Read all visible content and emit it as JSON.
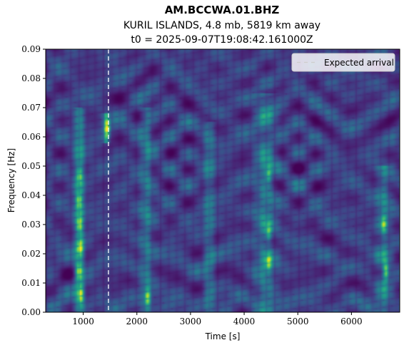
{
  "chart_data": {
    "type": "heatmap",
    "title": "AM.BCCWA.01.BHZ",
    "subtitle": "KURIL ISLANDS, 4.8 mb, 5819 km away",
    "subtitle2": "t0 = 2025-09-07T19:08:42.161000Z",
    "xlabel": "Time [s]",
    "ylabel": "Frequency [Hz]",
    "xlim": [
      300,
      6900
    ],
    "ylim": [
      0,
      0.09
    ],
    "xticks": [
      "1000",
      "2000",
      "3000",
      "4000",
      "5000",
      "6000"
    ],
    "yticks": [
      "0.00",
      "0.01",
      "0.02",
      "0.03",
      "0.04",
      "0.05",
      "0.06",
      "0.07",
      "0.08",
      "0.09"
    ],
    "colormap": "viridis",
    "expected_arrival": 1470,
    "legend": {
      "label": "Expected arrival",
      "position": "top-right"
    },
    "energy_bands": [
      {
        "t": 930,
        "w": 90,
        "f0": 0.0,
        "f1": 0.07,
        "amp": 0.75
      },
      {
        "t": 1420,
        "w": 60,
        "f0": 0.058,
        "f1": 0.068,
        "amp": 0.85
      },
      {
        "t": 2180,
        "w": 110,
        "f0": 0.0,
        "f1": 0.07,
        "amp": 0.5
      },
      {
        "t": 3350,
        "w": 90,
        "f0": 0.0,
        "f1": 0.065,
        "amp": 0.5
      },
      {
        "t": 4400,
        "w": 180,
        "f0": 0.0,
        "f1": 0.075,
        "amp": 0.55
      },
      {
        "t": 6600,
        "w": 120,
        "f0": 0.0,
        "f1": 0.05,
        "amp": 0.55
      }
    ],
    "hotspots": [
      {
        "t": 950,
        "f": 0.006,
        "amp": 1.0
      },
      {
        "t": 920,
        "f": 0.014,
        "amp": 1.0
      },
      {
        "t": 940,
        "f": 0.022,
        "amp": 1.0
      },
      {
        "t": 930,
        "f": 0.03,
        "amp": 1.0
      },
      {
        "t": 920,
        "f": 0.038,
        "amp": 0.9
      },
      {
        "t": 930,
        "f": 0.047,
        "amp": 0.75
      },
      {
        "t": 1450,
        "f": 0.063,
        "amp": 0.95
      },
      {
        "t": 2200,
        "f": 0.005,
        "amp": 0.9
      },
      {
        "t": 4450,
        "f": 0.017,
        "amp": 0.8
      },
      {
        "t": 4450,
        "f": 0.027,
        "amp": 0.7
      },
      {
        "t": 4450,
        "f": 0.047,
        "amp": 0.7
      },
      {
        "t": 6650,
        "f": 0.014,
        "amp": 0.95
      },
      {
        "t": 6600,
        "f": 0.03,
        "amp": 0.7
      }
    ]
  }
}
